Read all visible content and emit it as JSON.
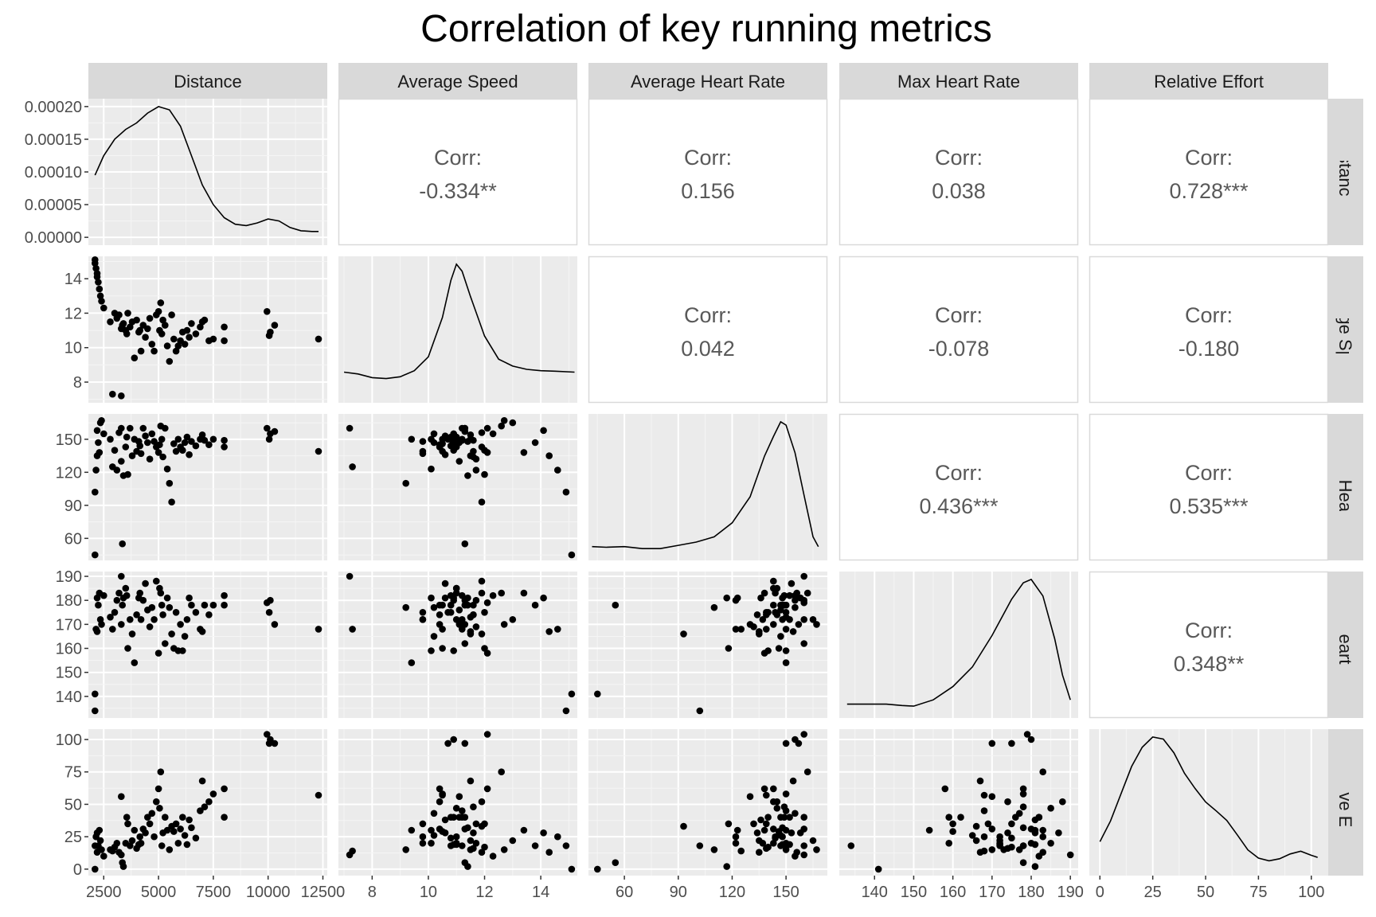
{
  "title": "Correlation of key running metrics",
  "chart_data": {
    "type": "scatter",
    "title": "Correlation of key running metrics",
    "variables": [
      "Distance",
      "Average Speed",
      "Average Heart Rate",
      "Max Heart Rate",
      "Relative Effort"
    ],
    "axes": [
      {
        "range": [
          1800,
          12700
        ],
        "ticks": [
          2500,
          5000,
          7500,
          10000,
          12500
        ],
        "tick_labels": [
          "2500",
          "5000",
          "7500",
          "10000",
          "12500"
        ]
      },
      {
        "range": [
          6.8,
          15.3
        ],
        "ticks": [
          8,
          10,
          12,
          14
        ],
        "tick_labels": [
          "8",
          "10",
          "12",
          "14"
        ]
      },
      {
        "range": [
          40,
          173
        ],
        "ticks": [
          60,
          90,
          120,
          150
        ],
        "tick_labels": [
          "60",
          "90",
          "120",
          "150"
        ]
      },
      {
        "range": [
          131,
          192
        ],
        "ticks": [
          140,
          150,
          160,
          170,
          180,
          190
        ],
        "tick_labels": [
          "140",
          "150",
          "160",
          "170",
          "180",
          "190"
        ]
      },
      {
        "range": [
          -5,
          108
        ],
        "ticks": [
          0,
          25,
          50,
          75,
          100
        ],
        "tick_labels": [
          "0",
          "25",
          "50",
          "75",
          "100"
        ]
      }
    ],
    "density_axis": {
      "range": [
        -1.2e-05,
        0.000212
      ],
      "ticks": [
        0,
        5e-05,
        0.0001,
        0.00015,
        0.0002
      ],
      "tick_labels": [
        "0.00000",
        "0.00005",
        "0.00010",
        "0.00015",
        "0.00020"
      ]
    },
    "correlations": [
      {
        "row": 0,
        "col": 1,
        "label": "Corr:",
        "value": "-0.334**"
      },
      {
        "row": 0,
        "col": 2,
        "label": "Corr:",
        "value": "0.156"
      },
      {
        "row": 0,
        "col": 3,
        "label": "Corr:",
        "value": "0.038"
      },
      {
        "row": 0,
        "col": 4,
        "label": "Corr:",
        "value": "0.728***"
      },
      {
        "row": 1,
        "col": 2,
        "label": "Corr:",
        "value": "0.042"
      },
      {
        "row": 1,
        "col": 3,
        "label": "Corr:",
        "value": "-0.078"
      },
      {
        "row": 1,
        "col": 4,
        "label": "Corr:",
        "value": "-0.180"
      },
      {
        "row": 2,
        "col": 3,
        "label": "Corr:",
        "value": "0.436***"
      },
      {
        "row": 2,
        "col": 4,
        "label": "Corr:",
        "value": "0.535***"
      },
      {
        "row": 3,
        "col": 4,
        "label": "Corr:",
        "value": "0.348**"
      }
    ],
    "densities": [
      [
        [
          2100,
          9.5e-05
        ],
        [
          2500,
          0.000125
        ],
        [
          3000,
          0.00015
        ],
        [
          3500,
          0.000165
        ],
        [
          4000,
          0.000175
        ],
        [
          4500,
          0.00019
        ],
        [
          5000,
          0.0002
        ],
        [
          5500,
          0.000195
        ],
        [
          6000,
          0.00017
        ],
        [
          6500,
          0.000125
        ],
        [
          7000,
          8e-05
        ],
        [
          7500,
          5e-05
        ],
        [
          8000,
          3e-05
        ],
        [
          8500,
          2e-05
        ],
        [
          9000,
          1.8e-05
        ],
        [
          9500,
          2.2e-05
        ],
        [
          10000,
          2.8e-05
        ],
        [
          10500,
          2.5e-05
        ],
        [
          11000,
          1.5e-05
        ],
        [
          11500,
          1e-05
        ],
        [
          12000,
          9e-06
        ],
        [
          12300,
          9e-06
        ]
      ],
      [
        [
          7.0,
          0.052
        ],
        [
          7.5,
          0.048
        ],
        [
          8.0,
          0.04
        ],
        [
          8.5,
          0.038
        ],
        [
          9.0,
          0.042
        ],
        [
          9.5,
          0.055
        ],
        [
          10.0,
          0.085
        ],
        [
          10.5,
          0.17
        ],
        [
          10.8,
          0.25
        ],
        [
          11.0,
          0.285
        ],
        [
          11.2,
          0.27
        ],
        [
          11.5,
          0.215
        ],
        [
          12.0,
          0.13
        ],
        [
          12.5,
          0.08
        ],
        [
          13.0,
          0.065
        ],
        [
          13.5,
          0.058
        ],
        [
          14.0,
          0.055
        ],
        [
          14.5,
          0.054
        ],
        [
          15.2,
          0.052
        ]
      ],
      [
        [
          42,
          0.0022
        ],
        [
          50,
          0.002
        ],
        [
          60,
          0.0022
        ],
        [
          70,
          0.0016
        ],
        [
          80,
          0.0016
        ],
        [
          90,
          0.0026
        ],
        [
          100,
          0.0036
        ],
        [
          110,
          0.0052
        ],
        [
          120,
          0.0095
        ],
        [
          130,
          0.0175
        ],
        [
          138,
          0.03
        ],
        [
          143,
          0.036
        ],
        [
          147,
          0.0405
        ],
        [
          150,
          0.0395
        ],
        [
          155,
          0.031
        ],
        [
          160,
          0.018
        ],
        [
          165,
          0.0052
        ],
        [
          168,
          0.0022
        ]
      ],
      [
        [
          133,
          0.0022
        ],
        [
          138,
          0.0022
        ],
        [
          143,
          0.0022
        ],
        [
          147,
          0.0018
        ],
        [
          150,
          0.0016
        ],
        [
          155,
          0.0035
        ],
        [
          160,
          0.0075
        ],
        [
          165,
          0.0135
        ],
        [
          170,
          0.023
        ],
        [
          175,
          0.034
        ],
        [
          178,
          0.039
        ],
        [
          180,
          0.04
        ],
        [
          183,
          0.035
        ],
        [
          186,
          0.022
        ],
        [
          188,
          0.011
        ],
        [
          190,
          0.0035
        ]
      ],
      [
        [
          0,
          0.004
        ],
        [
          5,
          0.007
        ],
        [
          10,
          0.011
        ],
        [
          15,
          0.015
        ],
        [
          20,
          0.0178
        ],
        [
          25,
          0.0193
        ],
        [
          30,
          0.019
        ],
        [
          35,
          0.017
        ],
        [
          40,
          0.014
        ],
        [
          45,
          0.0118
        ],
        [
          50,
          0.0098
        ],
        [
          55,
          0.0085
        ],
        [
          60,
          0.0071
        ],
        [
          65,
          0.005
        ],
        [
          70,
          0.0028
        ],
        [
          75,
          0.0016
        ],
        [
          80,
          0.0012
        ],
        [
          85,
          0.0015
        ],
        [
          90,
          0.0022
        ],
        [
          95,
          0.0026
        ],
        [
          100,
          0.002
        ],
        [
          103,
          0.0017
        ]
      ]
    ],
    "scatter_rows": [
      "Distance",
      "Average Speed",
      "Average Heart Rate",
      "Max Heart Rate",
      "Relative Effort"
    ],
    "records": [
      [
        2100,
        15.1,
        45,
        141,
        0
      ],
      [
        2100,
        14.9,
        102,
        134,
        18
      ],
      [
        2150,
        14.6,
        122,
        168,
        25
      ],
      [
        2200,
        14.3,
        135,
        167,
        13
      ],
      [
        2200,
        14.1,
        158,
        181,
        28
      ],
      [
        2250,
        13.8,
        147,
        178,
        18
      ],
      [
        2300,
        13.4,
        138,
        183,
        30
      ],
      [
        2350,
        13.0,
        165,
        172,
        22
      ],
      [
        2400,
        12.7,
        167,
        170,
        15
      ],
      [
        2500,
        12.3,
        155,
        182,
        10
      ],
      [
        2800,
        11.5,
        150,
        173,
        15
      ],
      [
        2900,
        7.3,
        125,
        168,
        14
      ],
      [
        3000,
        12.0,
        140,
        175,
        17
      ],
      [
        3100,
        11.7,
        122,
        180,
        20
      ],
      [
        3200,
        11.9,
        156,
        183,
        13
      ],
      [
        3300,
        7.2,
        160,
        190,
        11
      ],
      [
        3300,
        11.1,
        130,
        170,
        56
      ],
      [
        3350,
        11.3,
        55,
        178,
        5
      ],
      [
        3400,
        11.4,
        117,
        181,
        2
      ],
      [
        3500,
        11.0,
        143,
        185,
        20
      ],
      [
        3550,
        10.8,
        152,
        182,
        40
      ],
      [
        3600,
        12.0,
        118,
        160,
        35
      ],
      [
        3700,
        11.2,
        160,
        172,
        18
      ],
      [
        3800,
        11.5,
        135,
        166,
        22
      ],
      [
        3900,
        9.4,
        150,
        154,
        30
      ],
      [
        4000,
        11.6,
        139,
        174,
        16
      ],
      [
        4100,
        10.9,
        148,
        181,
        19
      ],
      [
        4150,
        11.0,
        144,
        183,
        25
      ],
      [
        4200,
        9.8,
        137,
        172,
        20
      ],
      [
        4300,
        11.3,
        160,
        180,
        31
      ],
      [
        4400,
        10.6,
        153,
        187,
        28
      ],
      [
        4500,
        11.1,
        147,
        176,
        40
      ],
      [
        4600,
        11.7,
        132,
        169,
        35
      ],
      [
        4700,
        10.2,
        155,
        177,
        43
      ],
      [
        4800,
        9.8,
        148,
        172,
        25
      ],
      [
        4900,
        11.9,
        143,
        188,
        52
      ],
      [
        5000,
        12.1,
        138,
        158,
        62
      ],
      [
        5050,
        11.0,
        145,
        185,
        47
      ],
      [
        5100,
        12.6,
        162,
        183,
        75
      ],
      [
        5150,
        10.8,
        150,
        178,
        18
      ],
      [
        5200,
        11.6,
        134,
        174,
        28
      ],
      [
        5300,
        11.3,
        160,
        162,
        40
      ],
      [
        5400,
        10.1,
        123,
        181,
        30
      ],
      [
        5500,
        9.2,
        110,
        177,
        15
      ],
      [
        5600,
        11.9,
        93,
        166,
        33
      ],
      [
        5700,
        10.5,
        146,
        160,
        29
      ],
      [
        5800,
        9.8,
        139,
        175,
        35
      ],
      [
        5900,
        10.1,
        150,
        159,
        20
      ],
      [
        6000,
        10.4,
        143,
        170,
        31
      ],
      [
        6100,
        10.9,
        140,
        159,
        40
      ],
      [
        6200,
        10.2,
        147,
        165,
        26
      ],
      [
        6300,
        11.0,
        152,
        172,
        19
      ],
      [
        6400,
        10.6,
        136,
        181,
        38
      ],
      [
        6500,
        11.4,
        148,
        178,
        32
      ],
      [
        6700,
        10.8,
        144,
        175,
        24
      ],
      [
        6900,
        11.2,
        150,
        168,
        45
      ],
      [
        7000,
        11.5,
        154,
        167,
        68
      ],
      [
        7100,
        11.6,
        149,
        178,
        48
      ],
      [
        7300,
        10.4,
        145,
        174,
        52
      ],
      [
        7500,
        10.5,
        150,
        178,
        58
      ],
      [
        8000,
        11.2,
        149,
        182,
        40
      ],
      [
        8000,
        10.4,
        143,
        178,
        62
      ],
      [
        9950,
        12.1,
        160,
        179,
        104
      ],
      [
        10050,
        10.7,
        150,
        175,
        97
      ],
      [
        10100,
        10.9,
        155,
        180,
        100
      ],
      [
        10300,
        11.3,
        157,
        170,
        97
      ],
      [
        12300,
        10.5,
        139,
        168,
        57
      ]
    ]
  }
}
